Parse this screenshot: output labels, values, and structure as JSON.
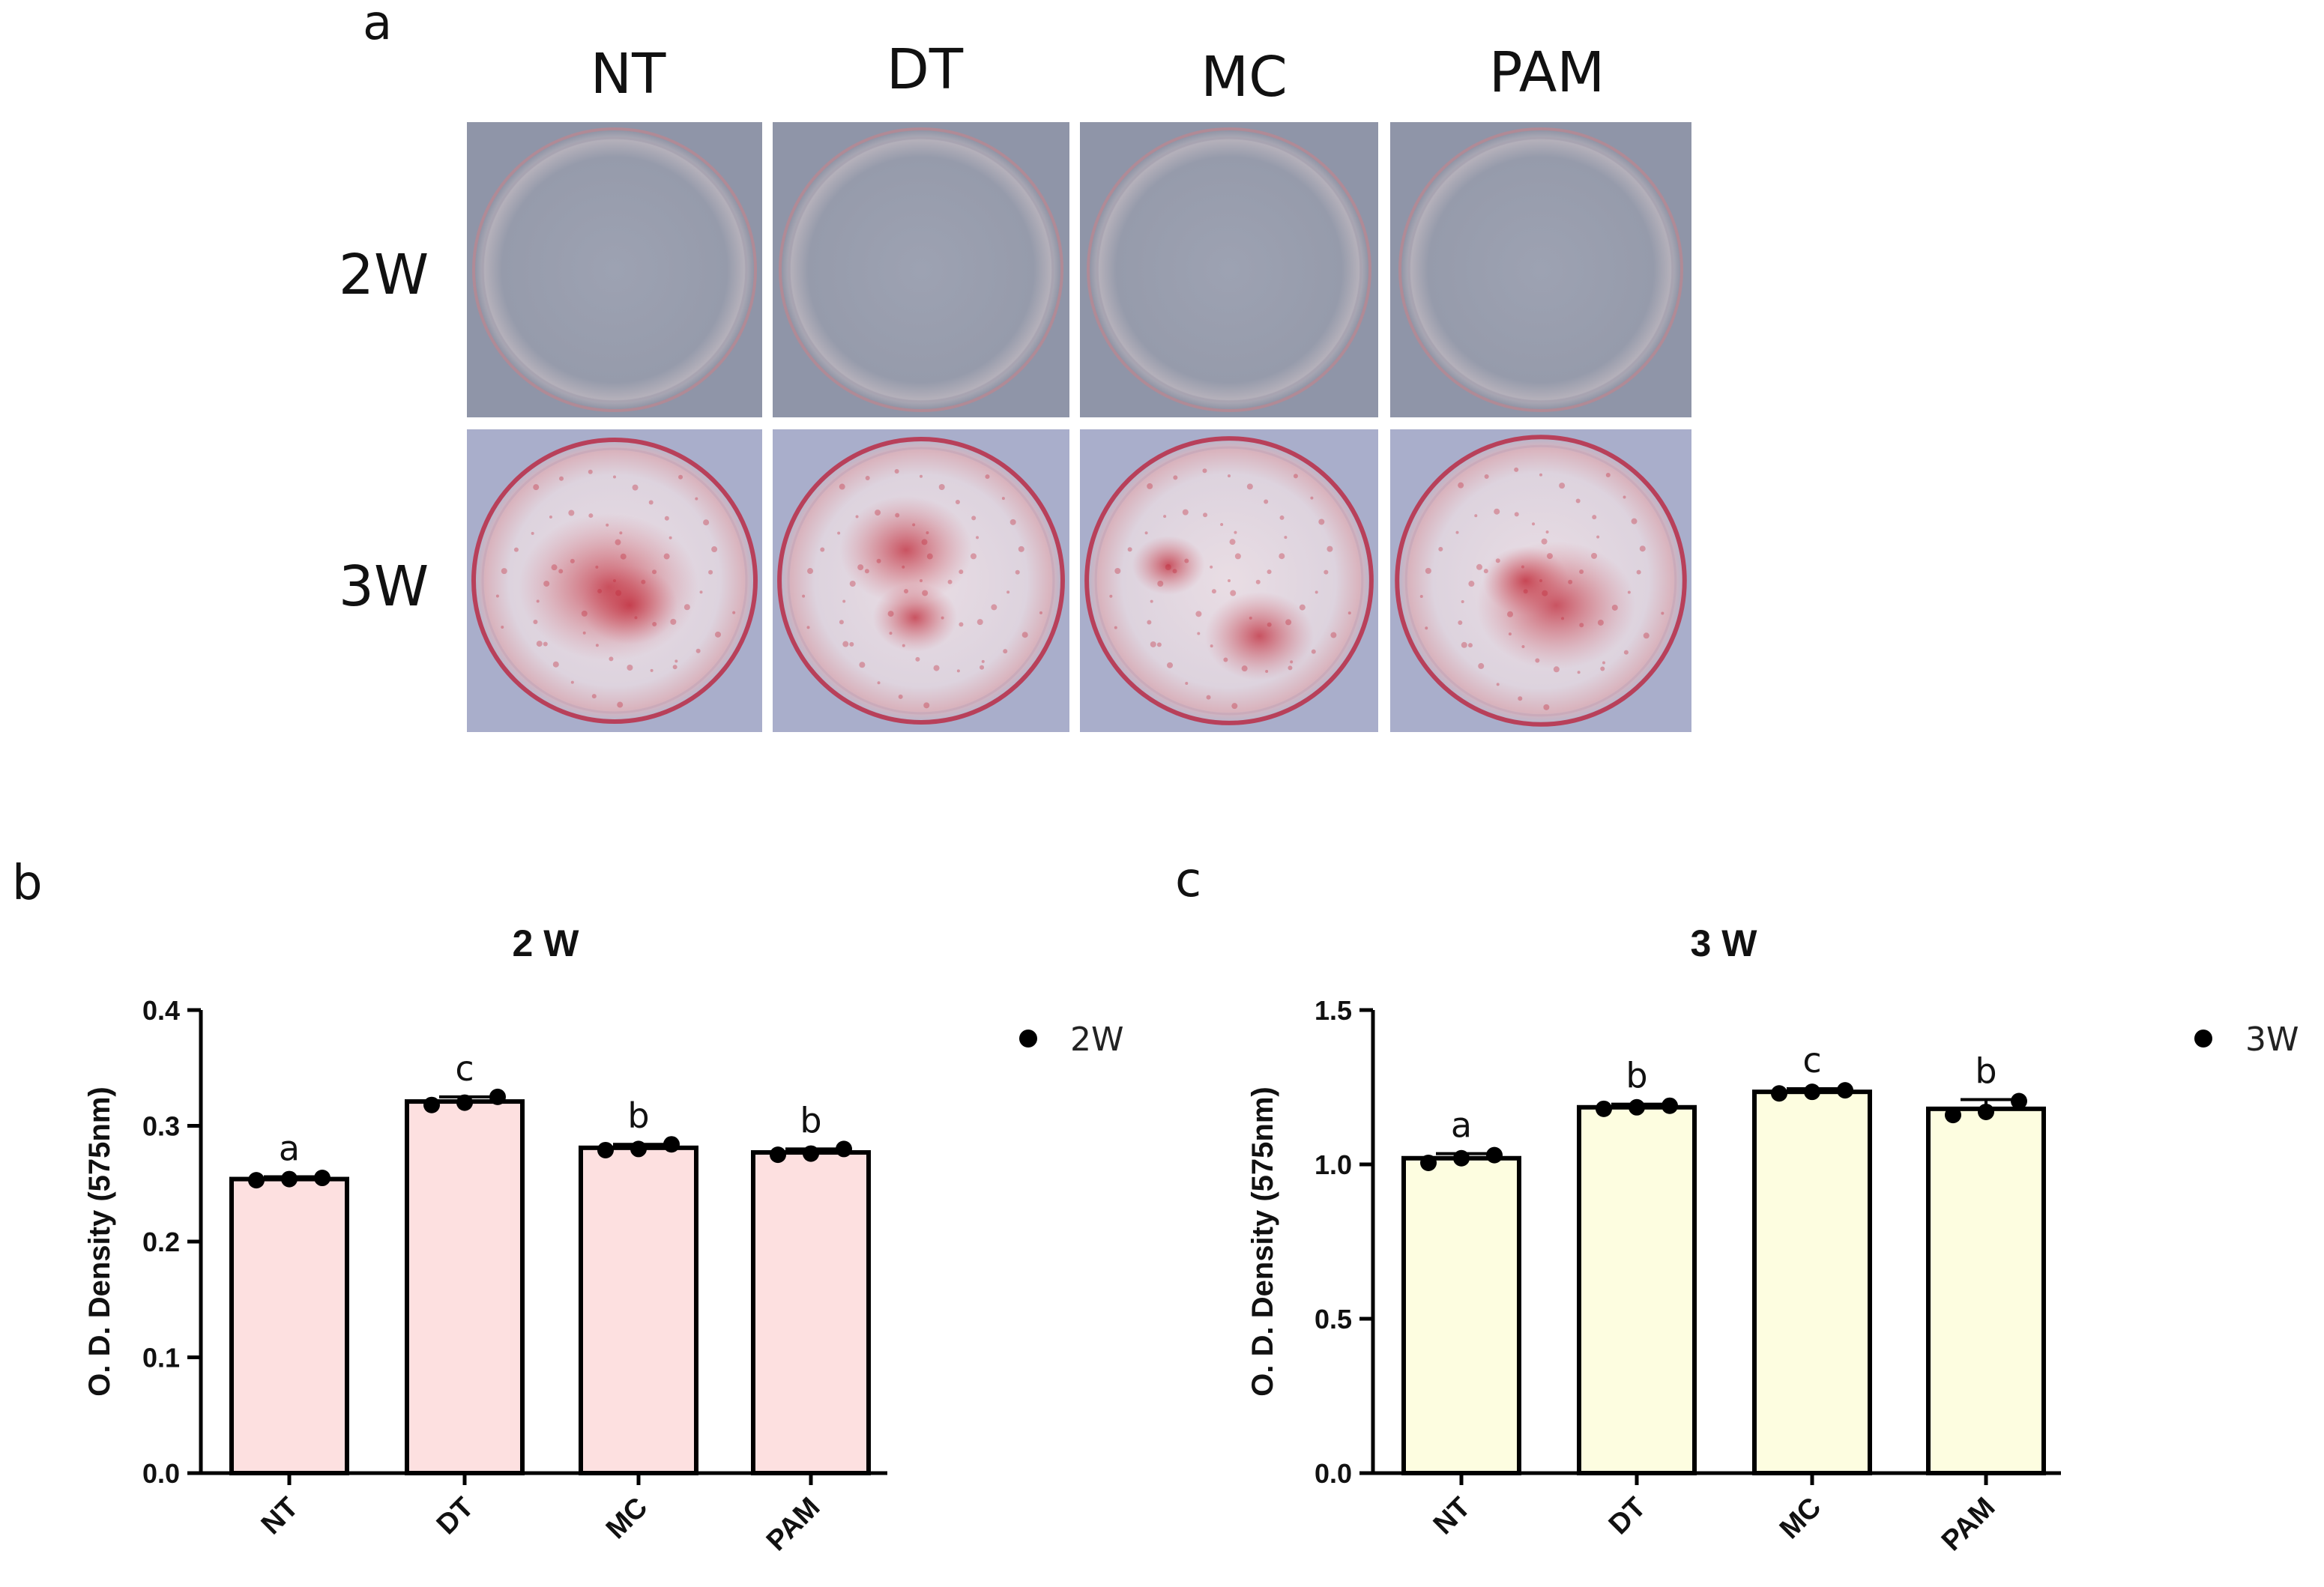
{
  "panel_a": {
    "letter": "a",
    "columns": [
      "NT",
      "DT",
      "MC",
      "PAM"
    ],
    "rows": [
      "2W",
      "3W"
    ]
  },
  "panel_b": {
    "letter": "b"
  },
  "panel_c": {
    "letter": "c"
  },
  "colors": {
    "bar_2w": "#fde0e0",
    "bar_3w": "#fdfde0",
    "dish_bg": "#8e94a8",
    "stain": "#c02636"
  },
  "chart_data": [
    {
      "type": "bar",
      "title": "2 W",
      "categories": [
        "NT",
        "DT",
        "MC",
        "PAM"
      ],
      "values": [
        0.254,
        0.321,
        0.281,
        0.277
      ],
      "errors": [
        0.002,
        0.004,
        0.003,
        0.003
      ],
      "points": [
        [
          0.253,
          0.254,
          0.255
        ],
        [
          0.318,
          0.32,
          0.325
        ],
        [
          0.279,
          0.28,
          0.284
        ],
        [
          0.275,
          0.276,
          0.28
        ]
      ],
      "significance": [
        "a",
        "c",
        "b",
        "b"
      ],
      "ylabel": "O. D. Density (575nm)",
      "ylim": [
        0,
        0.4
      ],
      "yticks": [
        "0.0",
        "0.1",
        "0.2",
        "0.3",
        "0.4"
      ],
      "legend": "2W",
      "legend_position": "top-right",
      "grid": false
    },
    {
      "type": "bar",
      "title": "3 W",
      "categories": [
        "NT",
        "DT",
        "MC",
        "PAM"
      ],
      "values": [
        1.02,
        1.185,
        1.235,
        1.18
      ],
      "errors": [
        0.015,
        0.01,
        0.01,
        0.03
      ],
      "points": [
        [
          1.005,
          1.02,
          1.03
        ],
        [
          1.18,
          1.185,
          1.19
        ],
        [
          1.23,
          1.235,
          1.24
        ],
        [
          1.16,
          1.17,
          1.205
        ]
      ],
      "significance": [
        "a",
        "b",
        "c",
        "b"
      ],
      "ylabel": "O. D. Density (575nm)",
      "ylim": [
        0,
        1.5
      ],
      "yticks": [
        "0.0",
        "0.5",
        "1.0",
        "1.5"
      ],
      "legend": "3W",
      "legend_position": "top-right",
      "grid": false
    }
  ]
}
